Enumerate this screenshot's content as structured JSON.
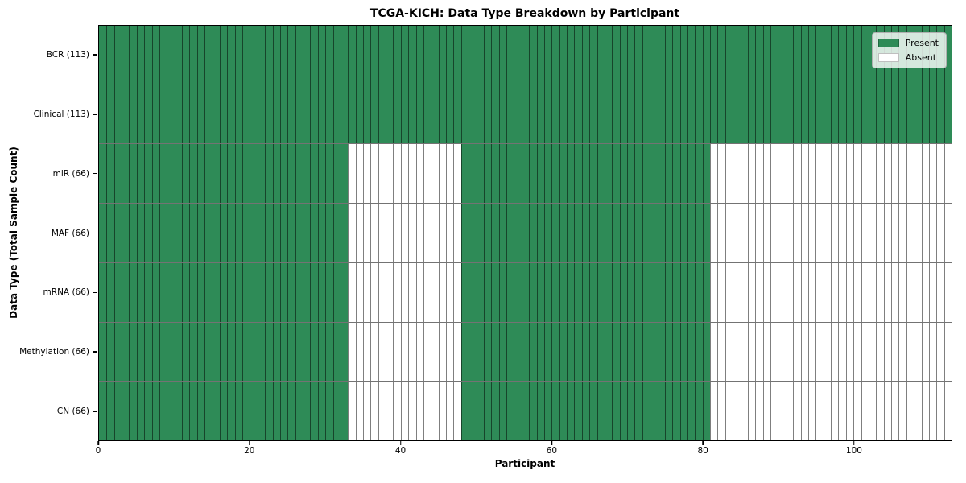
{
  "chart_data": {
    "type": "heatmap",
    "title": "TCGA-KICH: Data Type Breakdown by Participant",
    "xlabel": "Participant",
    "ylabel": "Data Type (Total Sample Count)",
    "x_range": [
      0,
      113
    ],
    "x_ticks": [
      0,
      20,
      40,
      60,
      80,
      100
    ],
    "n_participants": 113,
    "n_rows": 7,
    "grid": "cell-borders",
    "colors": {
      "present": "#2e8b57",
      "absent": "#ffffff",
      "cell_edge": "#404040",
      "plot_border": "#000000"
    },
    "legend": {
      "position": "upper-right",
      "entries": [
        {
          "label": "Present",
          "color": "#2e8b57"
        },
        {
          "label": "Absent",
          "color": "#ffffff"
        }
      ]
    },
    "rows": [
      {
        "label": "BCR (113)",
        "data_type": "BCR",
        "total_samples": 113,
        "present_ranges": [
          [
            0,
            113
          ]
        ]
      },
      {
        "label": "Clinical (113)",
        "data_type": "Clinical",
        "total_samples": 113,
        "present_ranges": [
          [
            0,
            113
          ]
        ]
      },
      {
        "label": "miR (66)",
        "data_type": "miR",
        "total_samples": 66,
        "present_ranges": [
          [
            0,
            33
          ],
          [
            48,
            81
          ]
        ]
      },
      {
        "label": "MAF (66)",
        "data_type": "MAF",
        "total_samples": 66,
        "present_ranges": [
          [
            0,
            33
          ],
          [
            48,
            81
          ]
        ]
      },
      {
        "label": "mRNA (66)",
        "data_type": "mRNA",
        "total_samples": 66,
        "present_ranges": [
          [
            0,
            33
          ],
          [
            48,
            81
          ]
        ]
      },
      {
        "label": "Methylation (66)",
        "data_type": "Methylation",
        "total_samples": 66,
        "present_ranges": [
          [
            0,
            33
          ],
          [
            48,
            81
          ]
        ]
      },
      {
        "label": "CN (66)",
        "data_type": "CN",
        "total_samples": 66,
        "present_ranges": [
          [
            0,
            33
          ],
          [
            48,
            81
          ]
        ]
      }
    ]
  }
}
